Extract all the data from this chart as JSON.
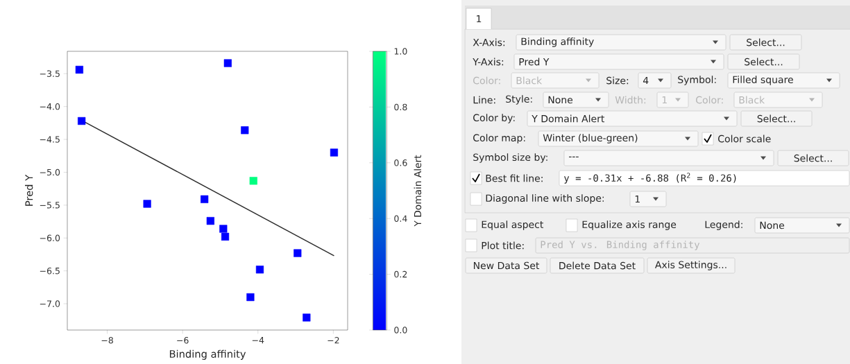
{
  "chart_data": [
    {
      "type": "scatter",
      "xlabel": "Binding affinity",
      "ylabel": "Pred Y",
      "clabel": "Y Domain Alert",
      "marker": "square",
      "xlim": [
        -9.06,
        -1.62
      ],
      "ylim": [
        -7.4,
        -3.16
      ],
      "xticks": [
        {
          "value": -8,
          "label": "−8"
        },
        {
          "value": -6,
          "label": "−6"
        },
        {
          "value": -4,
          "label": "−4"
        },
        {
          "value": -2,
          "label": "−2"
        }
      ],
      "yticks": [
        {
          "value": -3.5,
          "label": "−3.5"
        },
        {
          "value": -4.0,
          "label": "−4.0"
        },
        {
          "value": -4.5,
          "label": "−4.5"
        },
        {
          "value": -5.0,
          "label": "−5.0"
        },
        {
          "value": -5.5,
          "label": "−5.5"
        },
        {
          "value": -6.0,
          "label": "−6.0"
        },
        {
          "value": -6.5,
          "label": "−6.5"
        },
        {
          "value": -7.0,
          "label": "−7.0"
        }
      ],
      "clim": [
        0,
        1
      ],
      "cticks": [
        {
          "value": 0,
          "label": "0.0"
        },
        {
          "value": 0.2,
          "label": "0.2"
        },
        {
          "value": 0.4,
          "label": "0.4"
        },
        {
          "value": 0.6,
          "label": "0.6"
        },
        {
          "value": 0.8,
          "label": "0.8"
        },
        {
          "value": 1,
          "label": "1.0"
        }
      ],
      "series": [
        {
          "type": "scatter",
          "x": [
            -8.74,
            -4.8,
            -8.68,
            -4.35,
            -1.98,
            -4.12,
            -5.42,
            -6.94,
            -5.26,
            -4.92,
            -4.87,
            -2.95,
            -3.95,
            -4.2,
            -2.71
          ],
          "values": [
            -3.44,
            -3.34,
            -4.22,
            -4.36,
            -4.7,
            -5.13,
            -5.41,
            -5.48,
            -5.74,
            -5.86,
            -5.98,
            -6.23,
            -6.48,
            -6.9,
            -7.21
          ],
          "cvalues": [
            0,
            0,
            0,
            0,
            0,
            1,
            0,
            0,
            0,
            0,
            0,
            0,
            0,
            0,
            0
          ],
          "colors": [
            "#0000ff",
            "#0000ff",
            "#0000ff",
            "#0000ff",
            "#0000ff",
            "#00ff80",
            "#0000ff",
            "#0000ff",
            "#0000ff",
            "#0000ff",
            "#0000ff",
            "#0000ff",
            "#0000ff",
            "#0000ff",
            "#0000ff"
          ]
        },
        {
          "type": "line",
          "x": [
            -8.68,
            -1.98
          ],
          "values": [
            -4.21,
            -6.27
          ],
          "color": "#2b2b2b",
          "marker": "none",
          "line_style": "solid"
        }
      ]
    },
    {
      "type": "other",
      "annotations": [
        "1",
        "X-Axis:",
        "Binding affinity",
        "Select...",
        "Y-Axis:",
        "Pred Y",
        "Select...",
        "Color:",
        "Black",
        "Size:",
        "4",
        "Symbol:",
        "Filled square",
        "Line:",
        "Style:",
        "None",
        "Width:",
        "1",
        "Color:",
        "Black",
        "Color by:",
        "Y Domain Alert",
        "Select...",
        "Color map:",
        "Winter (blue-green)",
        "Color scale",
        "Symbol size by:",
        "---",
        "Select...",
        "Best fit line:",
        "y = -0.31x + -6.88 (R$^{2}$ = 0.26)",
        "Diagonal line with slope:",
        "1",
        "Equal aspect",
        "Equalize axis range",
        "Legend:",
        "None",
        "Plot title:",
        "Pred Y vs. Binding affinity",
        "New Data Set",
        "Delete Data Set",
        "Axis Settings..."
      ]
    }
  ]
}
